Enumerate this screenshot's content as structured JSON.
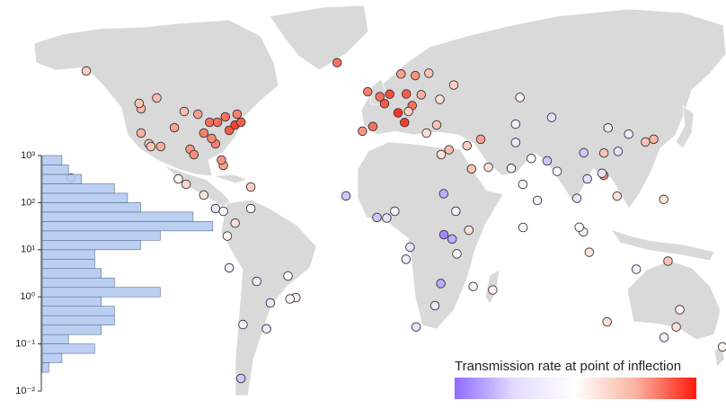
{
  "chart_data": [
    {
      "type": "map",
      "colorbar": {
        "title": "Transmission rate at point of inflection",
        "lim": [
          0.01,
          1000
        ],
        "log": true,
        "colors": [
          "#8f6cff",
          "#e4dcff",
          "#ffffff",
          "#f9b3a0",
          "#ff1a0a"
        ]
      },
      "lon": [
        -122,
        -118,
        -112,
        -105,
        -97,
        -95,
        -90,
        -87,
        -84,
        -80,
        -77,
        -74,
        -71,
        -83,
        -93,
        -117,
        -122,
        -100,
        -86,
        -81,
        -73,
        -79,
        -114,
        -123,
        -150,
        -66,
        -99,
        -103,
        -80,
        -84,
        -90,
        -74,
        -78,
        -77,
        -47,
        -43,
        -46,
        -58,
        -70,
        -66,
        -63,
        -56,
        -71,
        -3.7,
        -9,
        2.3,
        -0.1,
        4.9,
        12.5,
        9.2,
        13.4,
        16.4,
        21,
        18,
        10.7,
        24.9,
        37.6,
        30.5,
        28.9,
        23.7,
        -21.9,
        -6.3,
        14.5,
        51.4,
        35.2,
        46.7,
        55.3,
        44.4,
        31.2,
        -17.4,
        3.4,
        7.5,
        -1.6,
        36.8,
        32.6,
        38.7,
        28,
        18.4,
        31,
        47.5,
        15.3,
        13.2,
        32.5,
        45.3,
        57.5,
        39.2,
        77.2,
        72.9,
        80.3,
        90.4,
        67,
        69.2,
        85.3,
        100.5,
        103.8,
        106.8,
        121,
        114.2,
        121.5,
        116.4,
        114.3,
        126.9,
        139.7,
        135.5,
        105.8,
        104,
        113.3,
        87.6,
        71.4,
        69.2,
        101.7,
        73,
        -157.8,
        147,
        144.8,
        151.2,
        145,
        153,
        115.9,
        174.8,
        130.8
      ],
      "lat": [
        47,
        34,
        33,
        40,
        32,
        30,
        38,
        42,
        34,
        26,
        39,
        41,
        42,
        42,
        45,
        33,
        38,
        46,
        36,
        28,
        45,
        44,
        51,
        49,
        61,
        18,
        19,
        21,
        9,
        10,
        15,
        4.6,
        -0.2,
        -12,
        -15,
        -23,
        -23.5,
        -34.6,
        -33,
        10,
        -17,
        -25,
        -53,
        40.4,
        38.7,
        48.9,
        51.5,
        52.4,
        41.9,
        45.5,
        52.5,
        48.2,
        52.2,
        59.3,
        59.9,
        60.2,
        55.8,
        50.5,
        41,
        38,
        64.1,
        53.3,
        46,
        35.7,
        31.8,
        24.7,
        25.3,
        33.3,
        30,
        14.7,
        6.5,
        9,
        6.7,
        -1.3,
        0.3,
        9,
        -26,
        -33.9,
        -17.8,
        -18.9,
        -4.3,
        -8.8,
        15.5,
        2,
        -20.2,
        -6.8,
        28.6,
        19,
        13,
        23.8,
        24.9,
        34.5,
        27.7,
        13.8,
        1.35,
        -6.2,
        14.6,
        22.3,
        31.2,
        39.9,
        30.6,
        37.6,
        35.7,
        34.7,
        21,
        30.7,
        23.1,
        43.8,
        51.2,
        41.3,
        3.1,
        3,
        21.3,
        -9.5,
        13.4,
        -33.9,
        -37.8,
        -27.5,
        -32,
        -41.3,
        -12.5
      ],
      "values": [
        50,
        30,
        60,
        80,
        100,
        120,
        150,
        200,
        150,
        80,
        300,
        500,
        300,
        200,
        80,
        30,
        60,
        40,
        120,
        100,
        150,
        200,
        40,
        30,
        20,
        20,
        15,
        5,
        2,
        0.3,
        8,
        10,
        5,
        1,
        3,
        5,
        2,
        0.5,
        1,
        3,
        0.8,
        0.4,
        0.1,
        200,
        100,
        300,
        200,
        400,
        500,
        600,
        300,
        200,
        60,
        100,
        80,
        30,
        20,
        10,
        30,
        10,
        200,
        150,
        20,
        80,
        40,
        30,
        10,
        20,
        10,
        0.1,
        0.3,
        1,
        0.1,
        0.05,
        0.02,
        1,
        0.5,
        0.3,
        0.05,
        1,
        0.3,
        0.8,
        0.05,
        10,
        5,
        2,
        3,
        2,
        1,
        2,
        1,
        0.5,
        0.1,
        0.3,
        5,
        10,
        10,
        100,
        0.3,
        0.5,
        30,
        0.5,
        50,
        30,
        0.2,
        0.1,
        0.3,
        0.3,
        5,
        1,
        3,
        3,
        20,
        30,
        8,
        10,
        1,
        5,
        10,
        5,
        1
      ]
    },
    {
      "type": "histogram",
      "orientation": "horizontal",
      "log": true,
      "color": "#b3caf0",
      "edge_color": "#5f6f8f",
      "bins": [
        0.025,
        0.04,
        0.063,
        0.1,
        0.158,
        0.251,
        0.398,
        0.631,
        1,
        1.585,
        2.512,
        3.981,
        6.31,
        10,
        15.85,
        25.12,
        39.81,
        63.1,
        100,
        158.5,
        251.2,
        398.1,
        631,
        1000
      ],
      "counts": [
        1,
        3,
        8,
        4,
        9,
        11,
        11,
        9,
        18,
        11,
        9,
        8,
        8,
        15,
        18,
        26,
        23,
        15,
        13,
        11,
        6,
        4,
        3
      ],
      "xlim": [
        0,
        30
      ],
      "ylim": [
        0.01,
        1000
      ],
      "yticks": [
        {
          "value": 1000,
          "label": "10³"
        },
        {
          "value": 100,
          "label": "10²"
        },
        {
          "value": 10,
          "label": "10¹"
        },
        {
          "value": 1,
          "label": "10⁰"
        },
        {
          "value": 0.1,
          "label": "10⁻¹"
        },
        {
          "value": 0.01,
          "label": "10⁻²"
        }
      ]
    }
  ]
}
